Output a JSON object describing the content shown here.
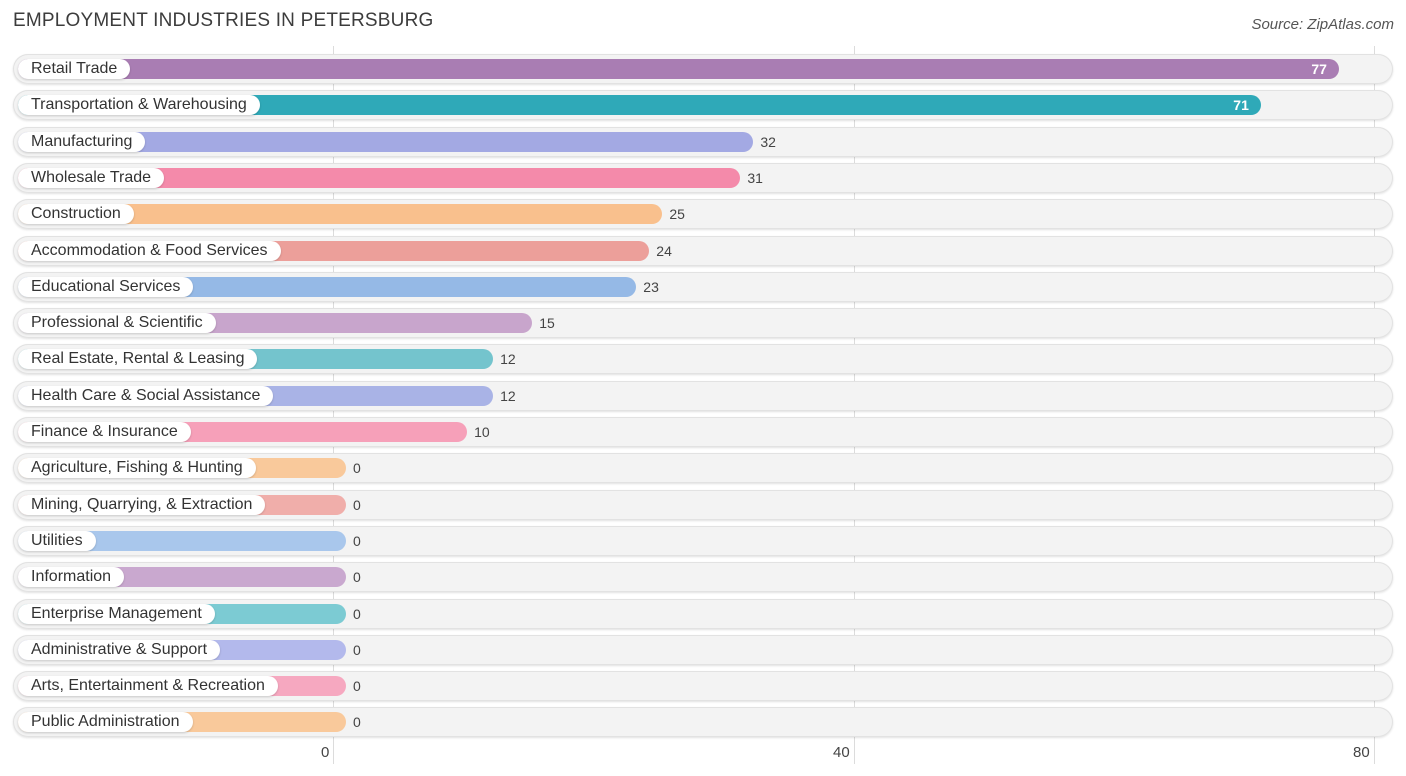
{
  "title": "EMPLOYMENT INDUSTRIES IN PETERSBURG",
  "source": "Source: ZipAtlas.com",
  "chart_data": {
    "type": "bar",
    "orientation": "horizontal",
    "title": "EMPLOYMENT INDUSTRIES IN PETERSBURG",
    "xlim": [
      0,
      80
    ],
    "x_ticks": [
      "0",
      "40",
      "80"
    ],
    "grid": true,
    "categories": [
      "Retail Trade",
      "Transportation & Warehousing",
      "Manufacturing",
      "Wholesale Trade",
      "Construction",
      "Accommodation & Food Services",
      "Educational Services",
      "Professional & Scientific",
      "Real Estate, Rental & Leasing",
      "Health Care & Social Assistance",
      "Finance & Insurance",
      "Agriculture, Fishing & Hunting",
      "Mining, Quarrying, & Extraction",
      "Utilities",
      "Information",
      "Enterprise Management",
      "Administrative & Support",
      "Arts, Entertainment & Recreation",
      "Public Administration"
    ],
    "values": [
      77,
      71,
      32,
      31,
      25,
      24,
      23,
      15,
      12,
      12,
      10,
      0,
      0,
      0,
      0,
      0,
      0,
      0,
      0
    ],
    "colors": [
      "#a97db3",
      "#2fa9b8",
      "#a3a9e3",
      "#f48aaa",
      "#f9c08d",
      "#ec9f9a",
      "#95b9e6",
      "#c8a5cc",
      "#74c4cd",
      "#a9b3e6",
      "#f6a0b9",
      "#f9c99b",
      "#f0aeaa",
      "#a9c7ec",
      "#c9a8cf",
      "#7ccbd3",
      "#b3b9ec",
      "#f6a8c0",
      "#f9c99b"
    ]
  }
}
